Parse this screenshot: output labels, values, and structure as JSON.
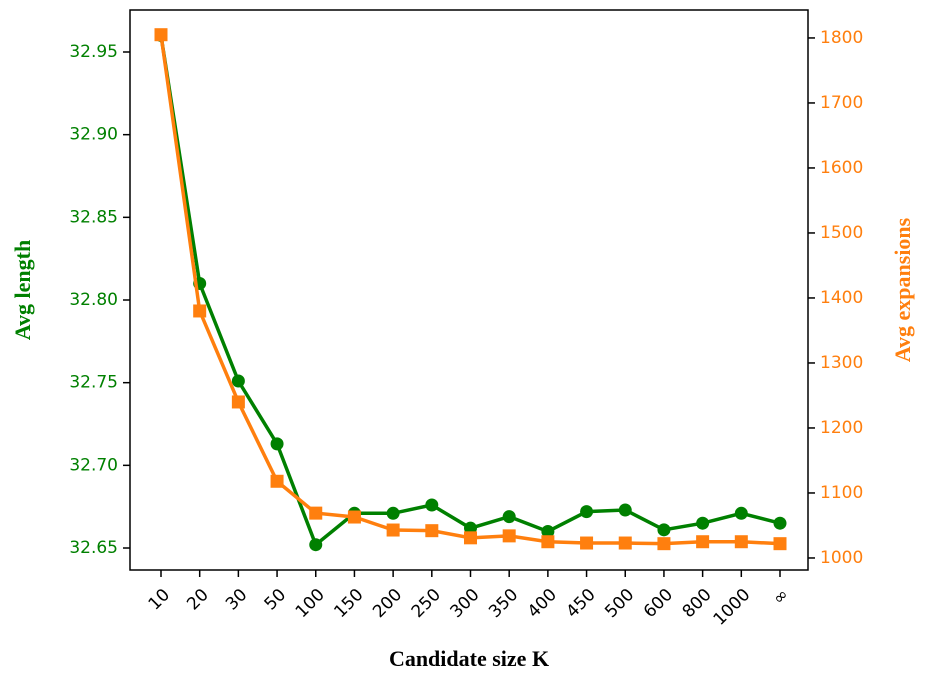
{
  "chart_data": {
    "type": "line",
    "xlabel": "Candidate size K",
    "ylabel": "Avg length",
    "y2label": "Avg expansions",
    "categories": [
      "10",
      "20",
      "30",
      "50",
      "100",
      "150",
      "200",
      "250",
      "300",
      "350",
      "400",
      "450",
      "500",
      "600",
      "800",
      "1000",
      "∞"
    ],
    "series": [
      {
        "name": "Avg length",
        "color": "#008000",
        "marker": "circle",
        "values": [
          32.96,
          32.81,
          32.751,
          32.713,
          32.652,
          32.671,
          32.671,
          32.676,
          32.662,
          32.669,
          32.66,
          32.672,
          32.673,
          32.661,
          32.665,
          32.671,
          32.665
        ]
      },
      {
        "name": "Avg expansions",
        "color": "#ff7f0e",
        "marker": "square",
        "axis": "y2",
        "values": [
          1805,
          1380,
          1240,
          1118,
          1069,
          1063,
          1043,
          1042,
          1031,
          1034,
          1025,
          1023,
          1023,
          1022,
          1025,
          1025,
          1022
        ]
      }
    ],
    "ylim": [
      32.6367,
      32.9754
    ],
    "yticks": [
      {
        "value": 32.65,
        "label": "32.65"
      },
      {
        "value": 32.7,
        "label": "32.70"
      },
      32.75,
      {
        "value": 32.8,
        "label": "32.80"
      },
      32.85,
      {
        "value": 32.9,
        "label": "32.90"
      },
      32.95
    ],
    "y2lim": [
      981.5,
      1843
    ],
    "y2ticks": [
      1000,
      1100,
      1200,
      1300,
      1400,
      1500,
      1600,
      1700,
      1800
    ]
  }
}
